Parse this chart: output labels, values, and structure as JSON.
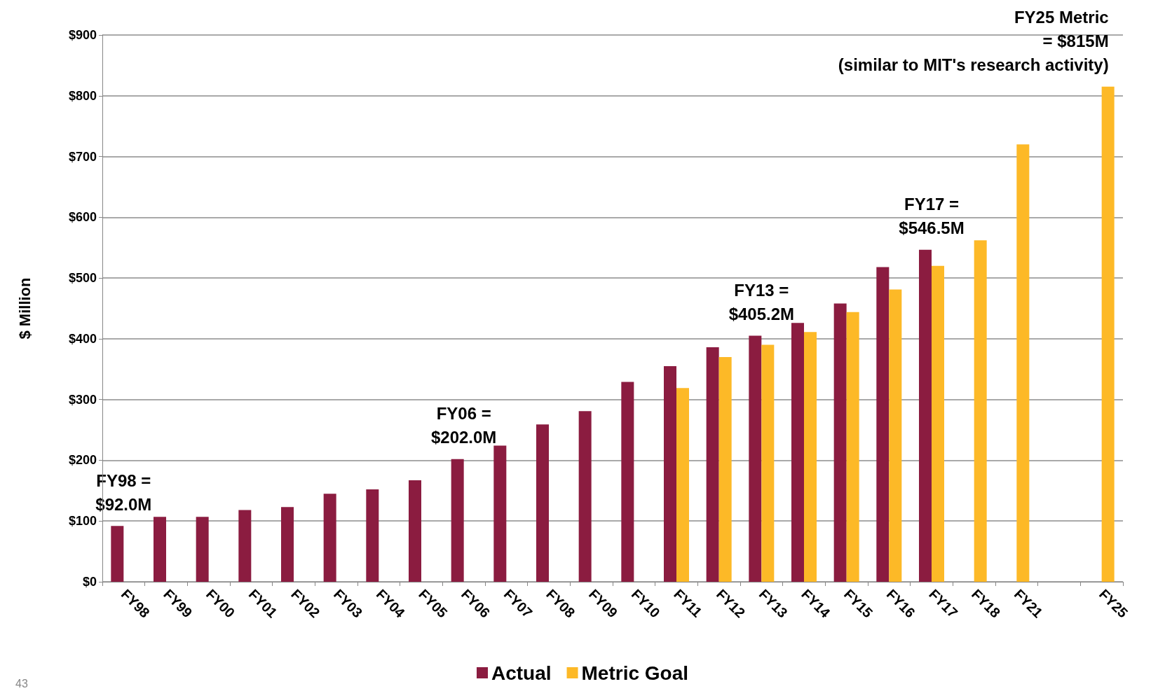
{
  "chart_data": {
    "type": "bar",
    "ylabel": "$ Million",
    "categories": [
      "FY98",
      "FY99",
      "FY00",
      "FY01",
      "FY02",
      "FY03",
      "FY04",
      "FY05",
      "FY06",
      "FY07",
      "FY08",
      "FY09",
      "FY10",
      "FY11",
      "FY12",
      "FY13",
      "FY14",
      "FY15",
      "FY16",
      "FY17",
      "FY18",
      "FY21",
      null,
      "FY25"
    ],
    "series": [
      {
        "name": "Actual",
        "color": "#8b1c40",
        "values": [
          92.0,
          107,
          107,
          118,
          123,
          145,
          152,
          167,
          202.0,
          224,
          259,
          281,
          329,
          355,
          386,
          405.2,
          426,
          458,
          518,
          546.5,
          null,
          null,
          null,
          null
        ]
      },
      {
        "name": "Metric Goal",
        "color": "#fdb927",
        "values": [
          null,
          null,
          null,
          null,
          null,
          null,
          null,
          null,
          null,
          null,
          null,
          null,
          null,
          319,
          370,
          390,
          411,
          444,
          481,
          520,
          562,
          720,
          null,
          815
        ]
      }
    ],
    "ylim": [
      0,
      900
    ],
    "yticks": [
      {
        "value": 0,
        "label": "$0"
      },
      {
        "value": 100,
        "label": "$100"
      },
      {
        "value": 200,
        "label": "$200"
      },
      {
        "value": 300,
        "label": "$300"
      },
      {
        "value": 400,
        "label": "$400"
      },
      {
        "value": 500,
        "label": "$500"
      },
      {
        "value": 600,
        "label": "$600"
      },
      {
        "value": 700,
        "label": "$700"
      },
      {
        "value": 800,
        "label": "$800"
      },
      {
        "value": 900,
        "label": "$900"
      }
    ],
    "grid": "y",
    "legend": "bottom",
    "annotations": [
      {
        "text": "FY98 =\n$92.0M",
        "x": "FY98",
        "y": 92.0
      },
      {
        "text": "FY06 =\n$202.0M",
        "x": "FY06",
        "y": 202.0
      },
      {
        "text": "FY13 =\n$405.2M",
        "x": "FY13",
        "y": 405.2
      },
      {
        "text": "FY17 =\n$546.5M",
        "x": "FY17",
        "y": 546.5
      },
      {
        "text": "FY25 Metric\n= $815M\n(similar to MIT's research activity)",
        "x": "FY25",
        "y": 815
      },
      "43"
    ]
  }
}
